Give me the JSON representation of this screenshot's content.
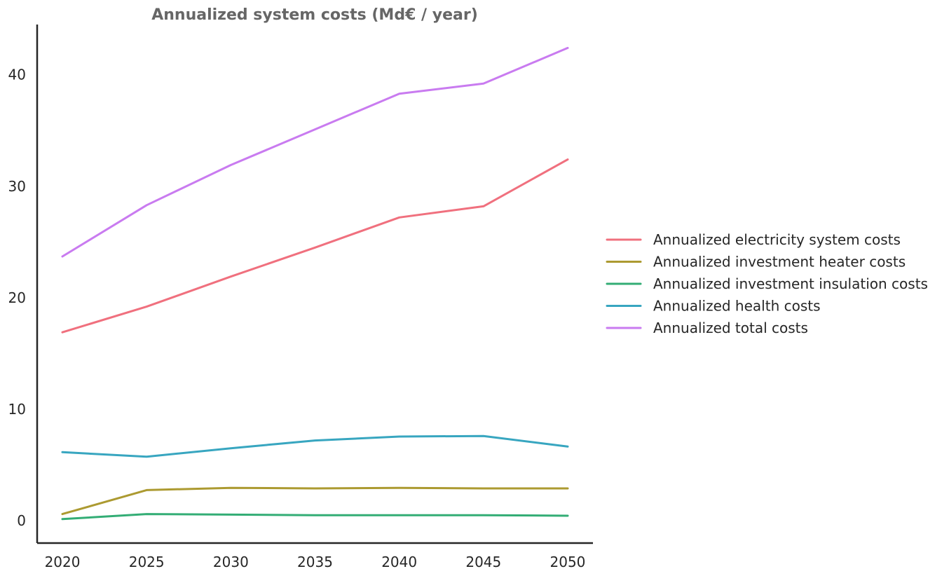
{
  "chart_data": {
    "type": "line",
    "title": "Annualized system costs (Md€ / year)",
    "xlabel": "",
    "ylabel": "",
    "x": [
      2020,
      2025,
      2030,
      2035,
      2040,
      2045,
      2050
    ],
    "xticks": [
      "2020",
      "2025",
      "2030",
      "2035",
      "2040",
      "2045",
      "2050"
    ],
    "yticks": [
      0,
      10,
      20,
      30,
      40
    ],
    "xlim": [
      2018.5,
      2051.5
    ],
    "ylim": [
      -2,
      44.5
    ],
    "grid": false,
    "legend_position": "center-right-outside",
    "series": [
      {
        "name": "Annualized electricity system costs",
        "color": "#f0707e",
        "values": [
          16.9,
          19.2,
          21.9,
          24.5,
          27.2,
          28.2,
          32.4
        ]
      },
      {
        "name": "Annualized investment heater costs",
        "color": "#ac9a31",
        "values": [
          0.6,
          2.75,
          2.95,
          2.9,
          2.95,
          2.9,
          2.9
        ]
      },
      {
        "name": "Annualized investment insulation costs",
        "color": "#33ad75",
        "values": [
          0.15,
          0.6,
          0.55,
          0.5,
          0.5,
          0.5,
          0.45
        ]
      },
      {
        "name": "Annualized health costs",
        "color": "#38a6c0",
        "values": [
          6.15,
          5.75,
          6.5,
          7.2,
          7.55,
          7.6,
          6.65
        ]
      },
      {
        "name": "Annualized total costs",
        "color": "#c97bf0",
        "values": [
          23.7,
          28.3,
          31.9,
          35.1,
          38.3,
          39.2,
          42.4
        ]
      }
    ]
  }
}
